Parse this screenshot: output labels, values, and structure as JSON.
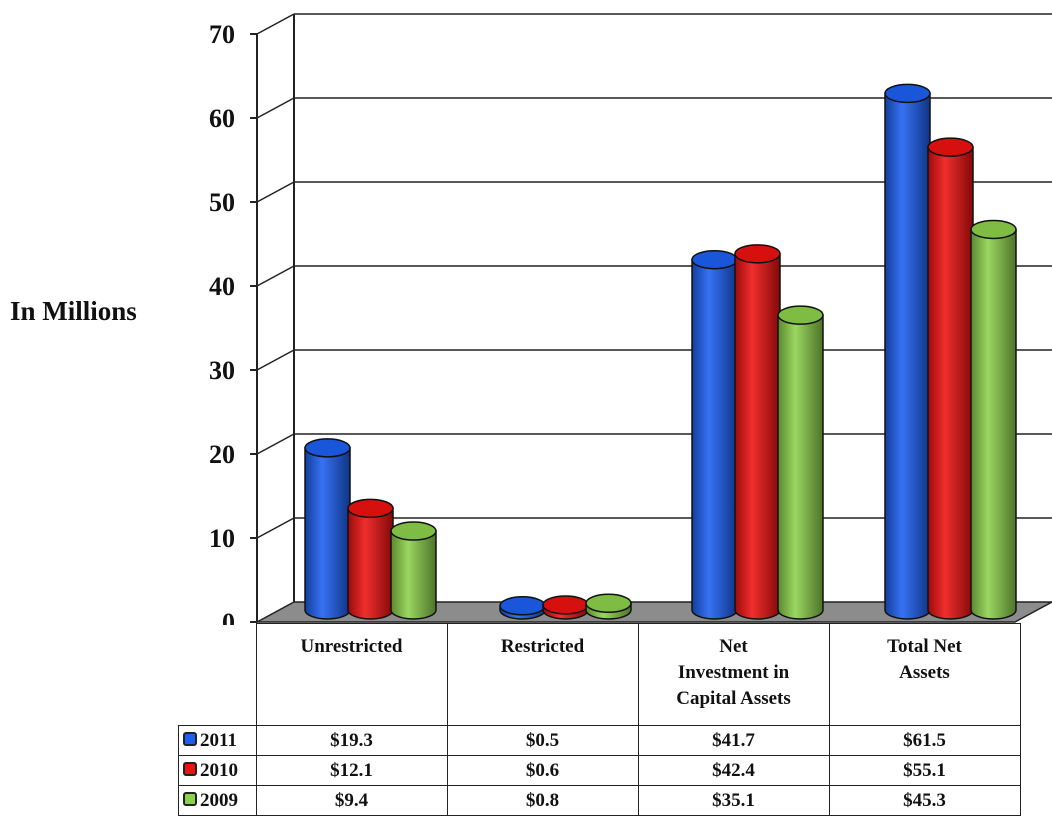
{
  "chart_data": {
    "type": "bar",
    "ylabel": "In Millions",
    "ylim": [
      0,
      70
    ],
    "yticks": [
      "0",
      "10",
      "20",
      "30",
      "40",
      "50",
      "60",
      "70"
    ],
    "grid": true,
    "categories": [
      "Unrestricted",
      "Restricted",
      "Net Investment in Capital Assets",
      "Total Net Assets"
    ],
    "category_labels": [
      [
        "Unrestricted"
      ],
      [
        "Restricted"
      ],
      [
        "Net",
        "Investment in",
        "Capital Assets"
      ],
      [
        "Total Net",
        "Assets"
      ]
    ],
    "series": [
      {
        "name": "2011",
        "color": "#1c5ff2",
        "values": [
          19.3,
          0.5,
          41.7,
          61.5
        ],
        "labels": [
          "$19.3",
          "$0.5",
          "$41.7",
          "$61.5"
        ]
      },
      {
        "name": "2010",
        "color": "#ee1111",
        "values": [
          12.1,
          0.6,
          42.4,
          55.1
        ],
        "labels": [
          "$12.1",
          "$0.6",
          "$42.4",
          "$55.1"
        ]
      },
      {
        "name": "2009",
        "color": "#8cd14a",
        "values": [
          9.4,
          0.8,
          35.1,
          45.3
        ],
        "labels": [
          "$9.4",
          "$0.8",
          "$35.1",
          "$45.3"
        ]
      }
    ],
    "legend": "data table below plot"
  }
}
